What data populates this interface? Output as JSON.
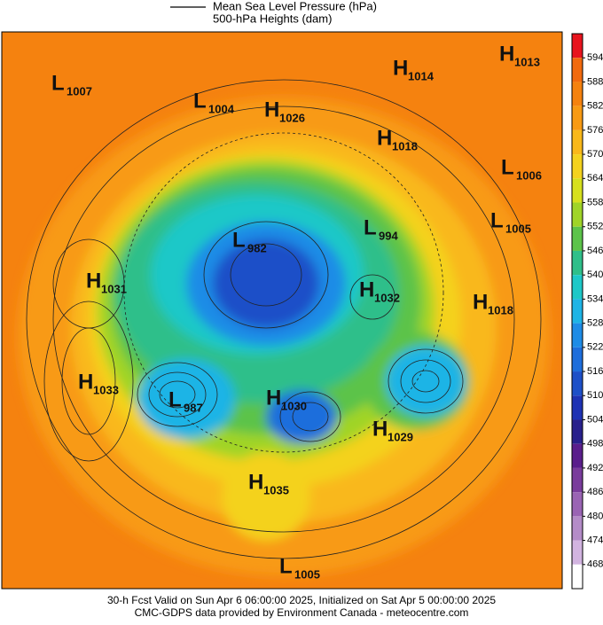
{
  "header": {
    "legend_line_1": "Mean Sea Level Pressure (hPa)",
    "legend_line_2": "500-hPa Heights (dam)"
  },
  "centers": [
    {
      "kind": "L",
      "value": 1007
    },
    {
      "kind": "L",
      "value": 1004
    },
    {
      "kind": "H",
      "value": 1026
    },
    {
      "kind": "H",
      "value": 1014
    },
    {
      "kind": "H",
      "value": 1013
    },
    {
      "kind": "H",
      "value": 1018
    },
    {
      "kind": "L",
      "value": 1006
    },
    {
      "kind": "L",
      "value": 1005
    },
    {
      "kind": "L",
      "value": 994
    },
    {
      "kind": "L",
      "value": 982
    },
    {
      "kind": "H",
      "value": 1031
    },
    {
      "kind": "H",
      "value": 1032
    },
    {
      "kind": "H",
      "value": 1018
    },
    {
      "kind": "H",
      "value": 1033
    },
    {
      "kind": "L",
      "value": 987
    },
    {
      "kind": "H",
      "value": 1030
    },
    {
      "kind": "H",
      "value": 1029
    },
    {
      "kind": "H",
      "value": 1035
    },
    {
      "kind": "L",
      "value": 1005
    }
  ],
  "colorbar": {
    "ticks": [
      594,
      588,
      582,
      576,
      570,
      564,
      558,
      552,
      546,
      540,
      534,
      528,
      522,
      516,
      510,
      504,
      498,
      492,
      486,
      480,
      474,
      468
    ],
    "colors": [
      "#e8141e",
      "#f26a0f",
      "#f5820f",
      "#f89a14",
      "#f9b81a",
      "#f4d21e",
      "#d6e01e",
      "#a0d428",
      "#5cc34a",
      "#2fbf8a",
      "#1ec8c8",
      "#1eb4e6",
      "#1e8ce6",
      "#1e6edc",
      "#1e50c8",
      "#1e32b4",
      "#28208c",
      "#5a1e8c",
      "#7a3c9c",
      "#9a64b4",
      "#b48cc8",
      "#d2b4e0",
      "#ffffff"
    ]
  },
  "footer": {
    "line_1": "30-h Fcst Valid on Sun Apr  6 06:00:00 2025, Initialized on Sat Apr  5 00:00:00 2025",
    "line_2": "CMC-GDPS data provided by Environment Canada - meteocentre.com"
  }
}
